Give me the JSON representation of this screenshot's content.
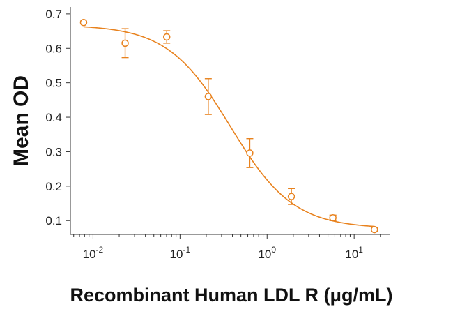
{
  "chart_data": {
    "type": "scatter",
    "xlabel": "Recombinant Human LDL R (μg/mL)",
    "ylabel": "Mean OD",
    "x_scale": "log",
    "xlim": [
      0.0055,
      26
    ],
    "ylim": [
      0.06,
      0.72
    ],
    "y_ticks": [
      0.1,
      0.2,
      0.3,
      0.4,
      0.5,
      0.6,
      0.7
    ],
    "x_ticks": [
      {
        "base": "10",
        "exp": "-2",
        "value": 0.01
      },
      {
        "base": "10",
        "exp": "-1",
        "value": 0.1
      },
      {
        "base": "10",
        "exp": "0",
        "value": 1
      },
      {
        "base": "10",
        "exp": "1",
        "value": 10
      }
    ],
    "color": "#e8821e",
    "grid": false,
    "points": [
      {
        "x": 0.0078,
        "y": 0.675,
        "err": 0.004
      },
      {
        "x": 0.0234,
        "y": 0.615,
        "err": 0.042
      },
      {
        "x": 0.0703,
        "y": 0.633,
        "err": 0.018
      },
      {
        "x": 0.211,
        "y": 0.46,
        "err": 0.052
      },
      {
        "x": 0.633,
        "y": 0.296,
        "err": 0.042
      },
      {
        "x": 1.9,
        "y": 0.17,
        "err": 0.023
      },
      {
        "x": 5.7,
        "y": 0.108,
        "err": 0.008
      },
      {
        "x": 17.1,
        "y": 0.074,
        "err": 0.005
      }
    ],
    "fit": {
      "model": "4PL",
      "top": 0.668,
      "bottom": 0.077,
      "ec50": 0.38,
      "hill": 1.2
    }
  }
}
